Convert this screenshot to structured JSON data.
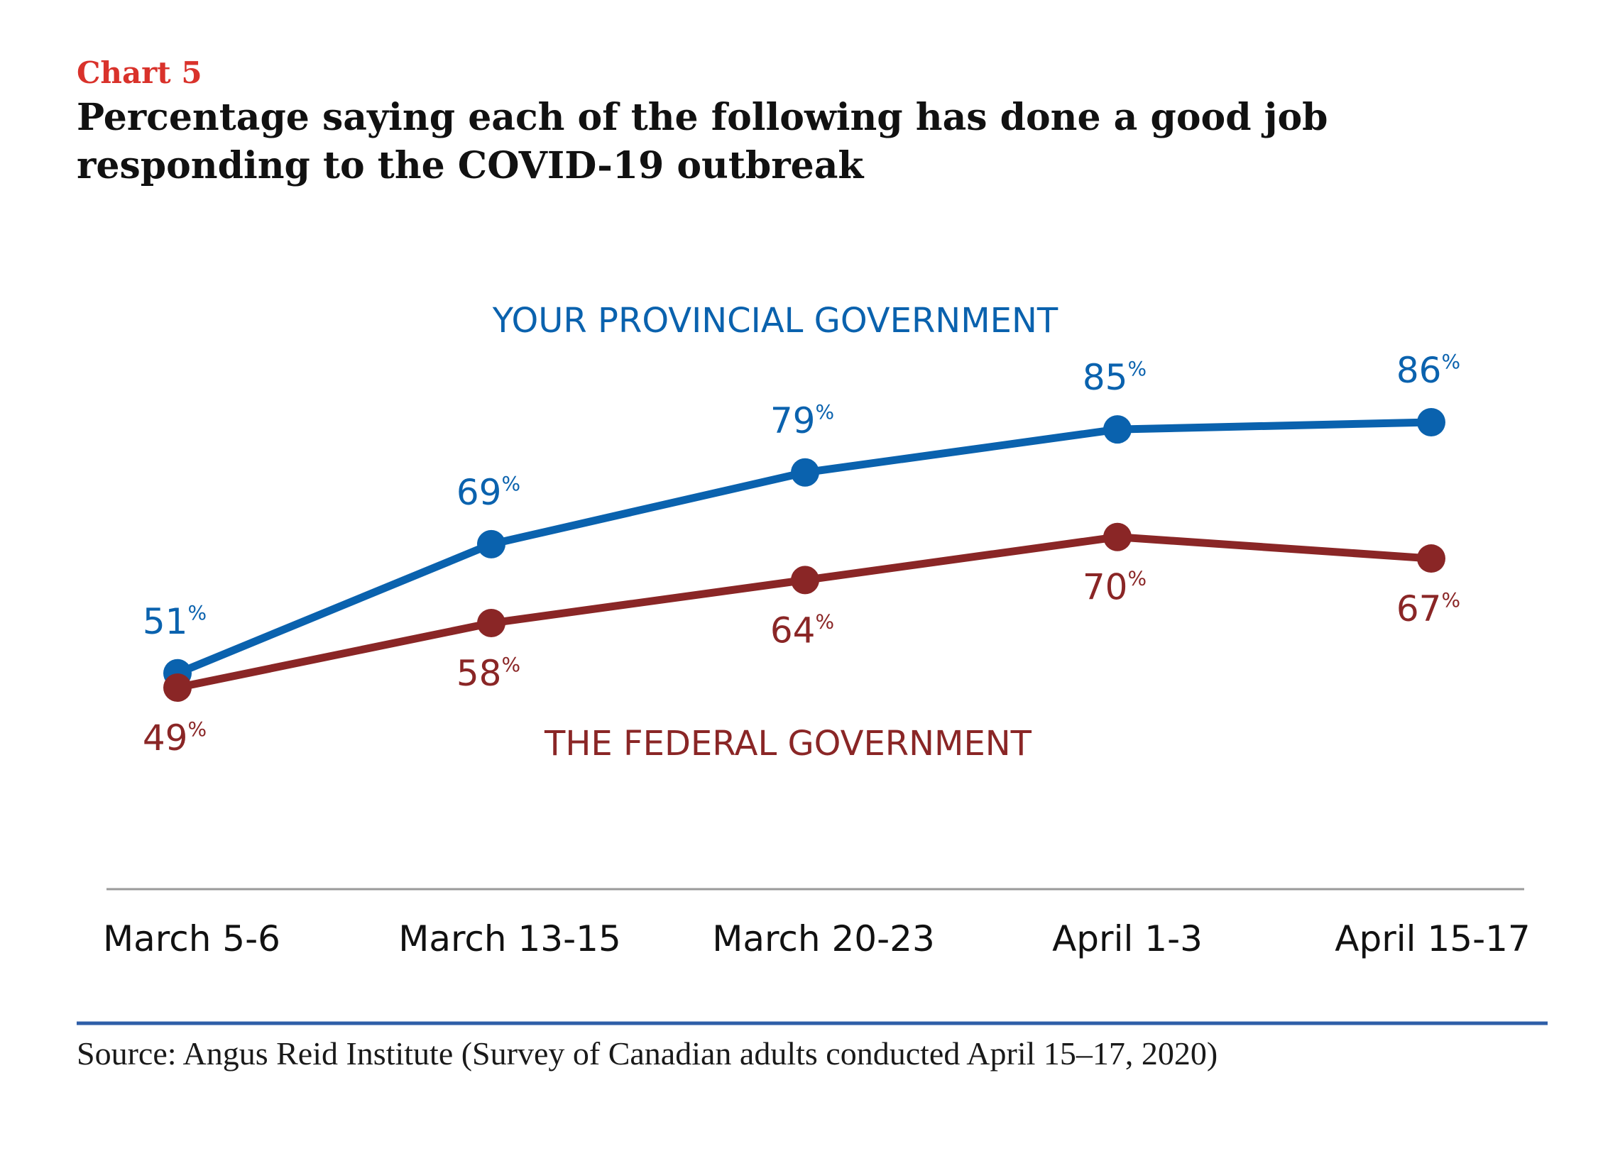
{
  "chart_data": {
    "type": "line",
    "label": "Chart 5",
    "title": "Percentage saying each of the following has done a good job responding to the COVID-19 outbreak",
    "categories": [
      "March 5-6",
      "March 13-15",
      "March 20-23",
      "April 1-3",
      "April 15-17"
    ],
    "value_suffix": "%",
    "ylim": [
      40,
      95
    ],
    "grid": false,
    "series": [
      {
        "name": "YOUR PROVINCIAL GOVERNMENT",
        "values": [
          51,
          69,
          79,
          85,
          86
        ],
        "color": "#0a62ae",
        "label_position": "above"
      },
      {
        "name": "THE FEDERAL GOVERNMENT",
        "values": [
          49,
          58,
          64,
          70,
          67
        ],
        "color": "#8a2626",
        "label_position": "below"
      }
    ],
    "source": "Source: Angus Reid Institute (Survey of Canadian adults conducted April 15–17, 2020)"
  }
}
